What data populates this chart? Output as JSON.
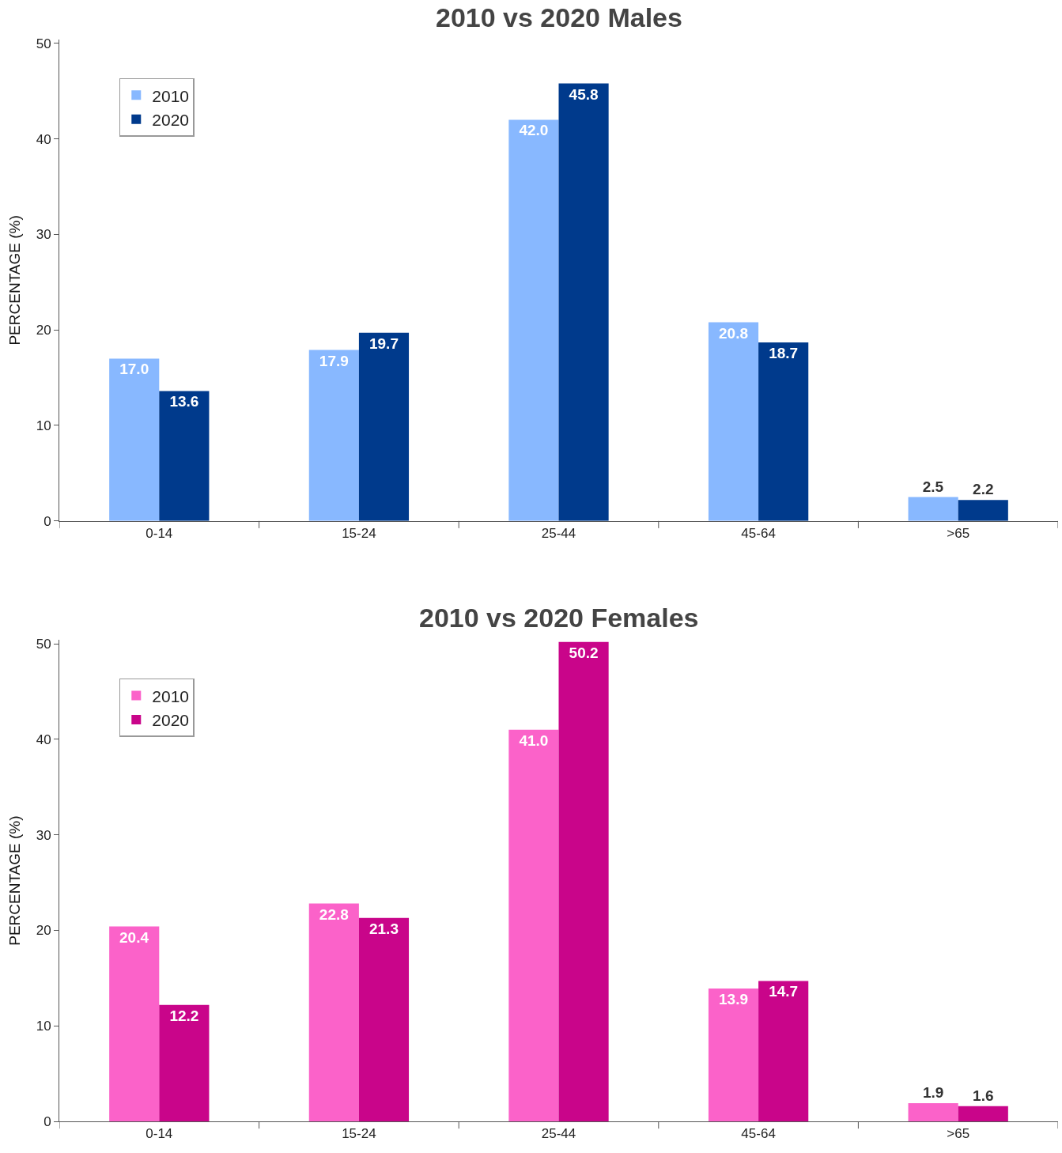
{
  "chart_data": [
    {
      "type": "bar",
      "title": "2010 vs 2020 Males",
      "ylabel": "PERCENTAGE (%)",
      "categories": [
        "0-14",
        "15-24",
        "25-44",
        "45-64",
        ">65"
      ],
      "series": [
        {
          "name": "2010",
          "color": "#88b8ff",
          "values": [
            17.0,
            17.9,
            42.0,
            20.8,
            2.5
          ],
          "value_labels": [
            "17.0",
            "17.9",
            "42.0",
            "20.8",
            "2.5"
          ]
        },
        {
          "name": "2020",
          "color": "#003a8c",
          "values": [
            13.6,
            19.7,
            45.8,
            18.7,
            2.2
          ],
          "value_labels": [
            "13.6",
            "19.7",
            "45.8",
            "18.7",
            "2.2"
          ]
        }
      ],
      "ylim": [
        0,
        50.4
      ],
      "yticks": [
        0,
        10,
        20,
        30,
        40,
        50
      ],
      "legend": "top left"
    },
    {
      "type": "bar",
      "title": "2010 vs 2020 Females",
      "ylabel": "PERCENTAGE (%)",
      "categories": [
        "0-14",
        "15-24",
        "25-44",
        "45-64",
        ">65"
      ],
      "series": [
        {
          "name": "2010",
          "color": "#fb62c9",
          "values": [
            20.4,
            22.8,
            41.0,
            13.9,
            1.9
          ],
          "value_labels": [
            "20.4",
            "22.8",
            "41.0",
            "13.9",
            "1.9"
          ]
        },
        {
          "name": "2020",
          "color": "#c9058a",
          "values": [
            12.2,
            21.3,
            50.2,
            14.7,
            1.6
          ],
          "value_labels": [
            "12.2",
            "21.3",
            "50.2",
            "14.7",
            "1.6"
          ]
        }
      ],
      "ylim": [
        0,
        50.4
      ],
      "yticks": [
        0,
        10,
        20,
        30,
        40,
        50
      ],
      "legend": "top left"
    }
  ]
}
